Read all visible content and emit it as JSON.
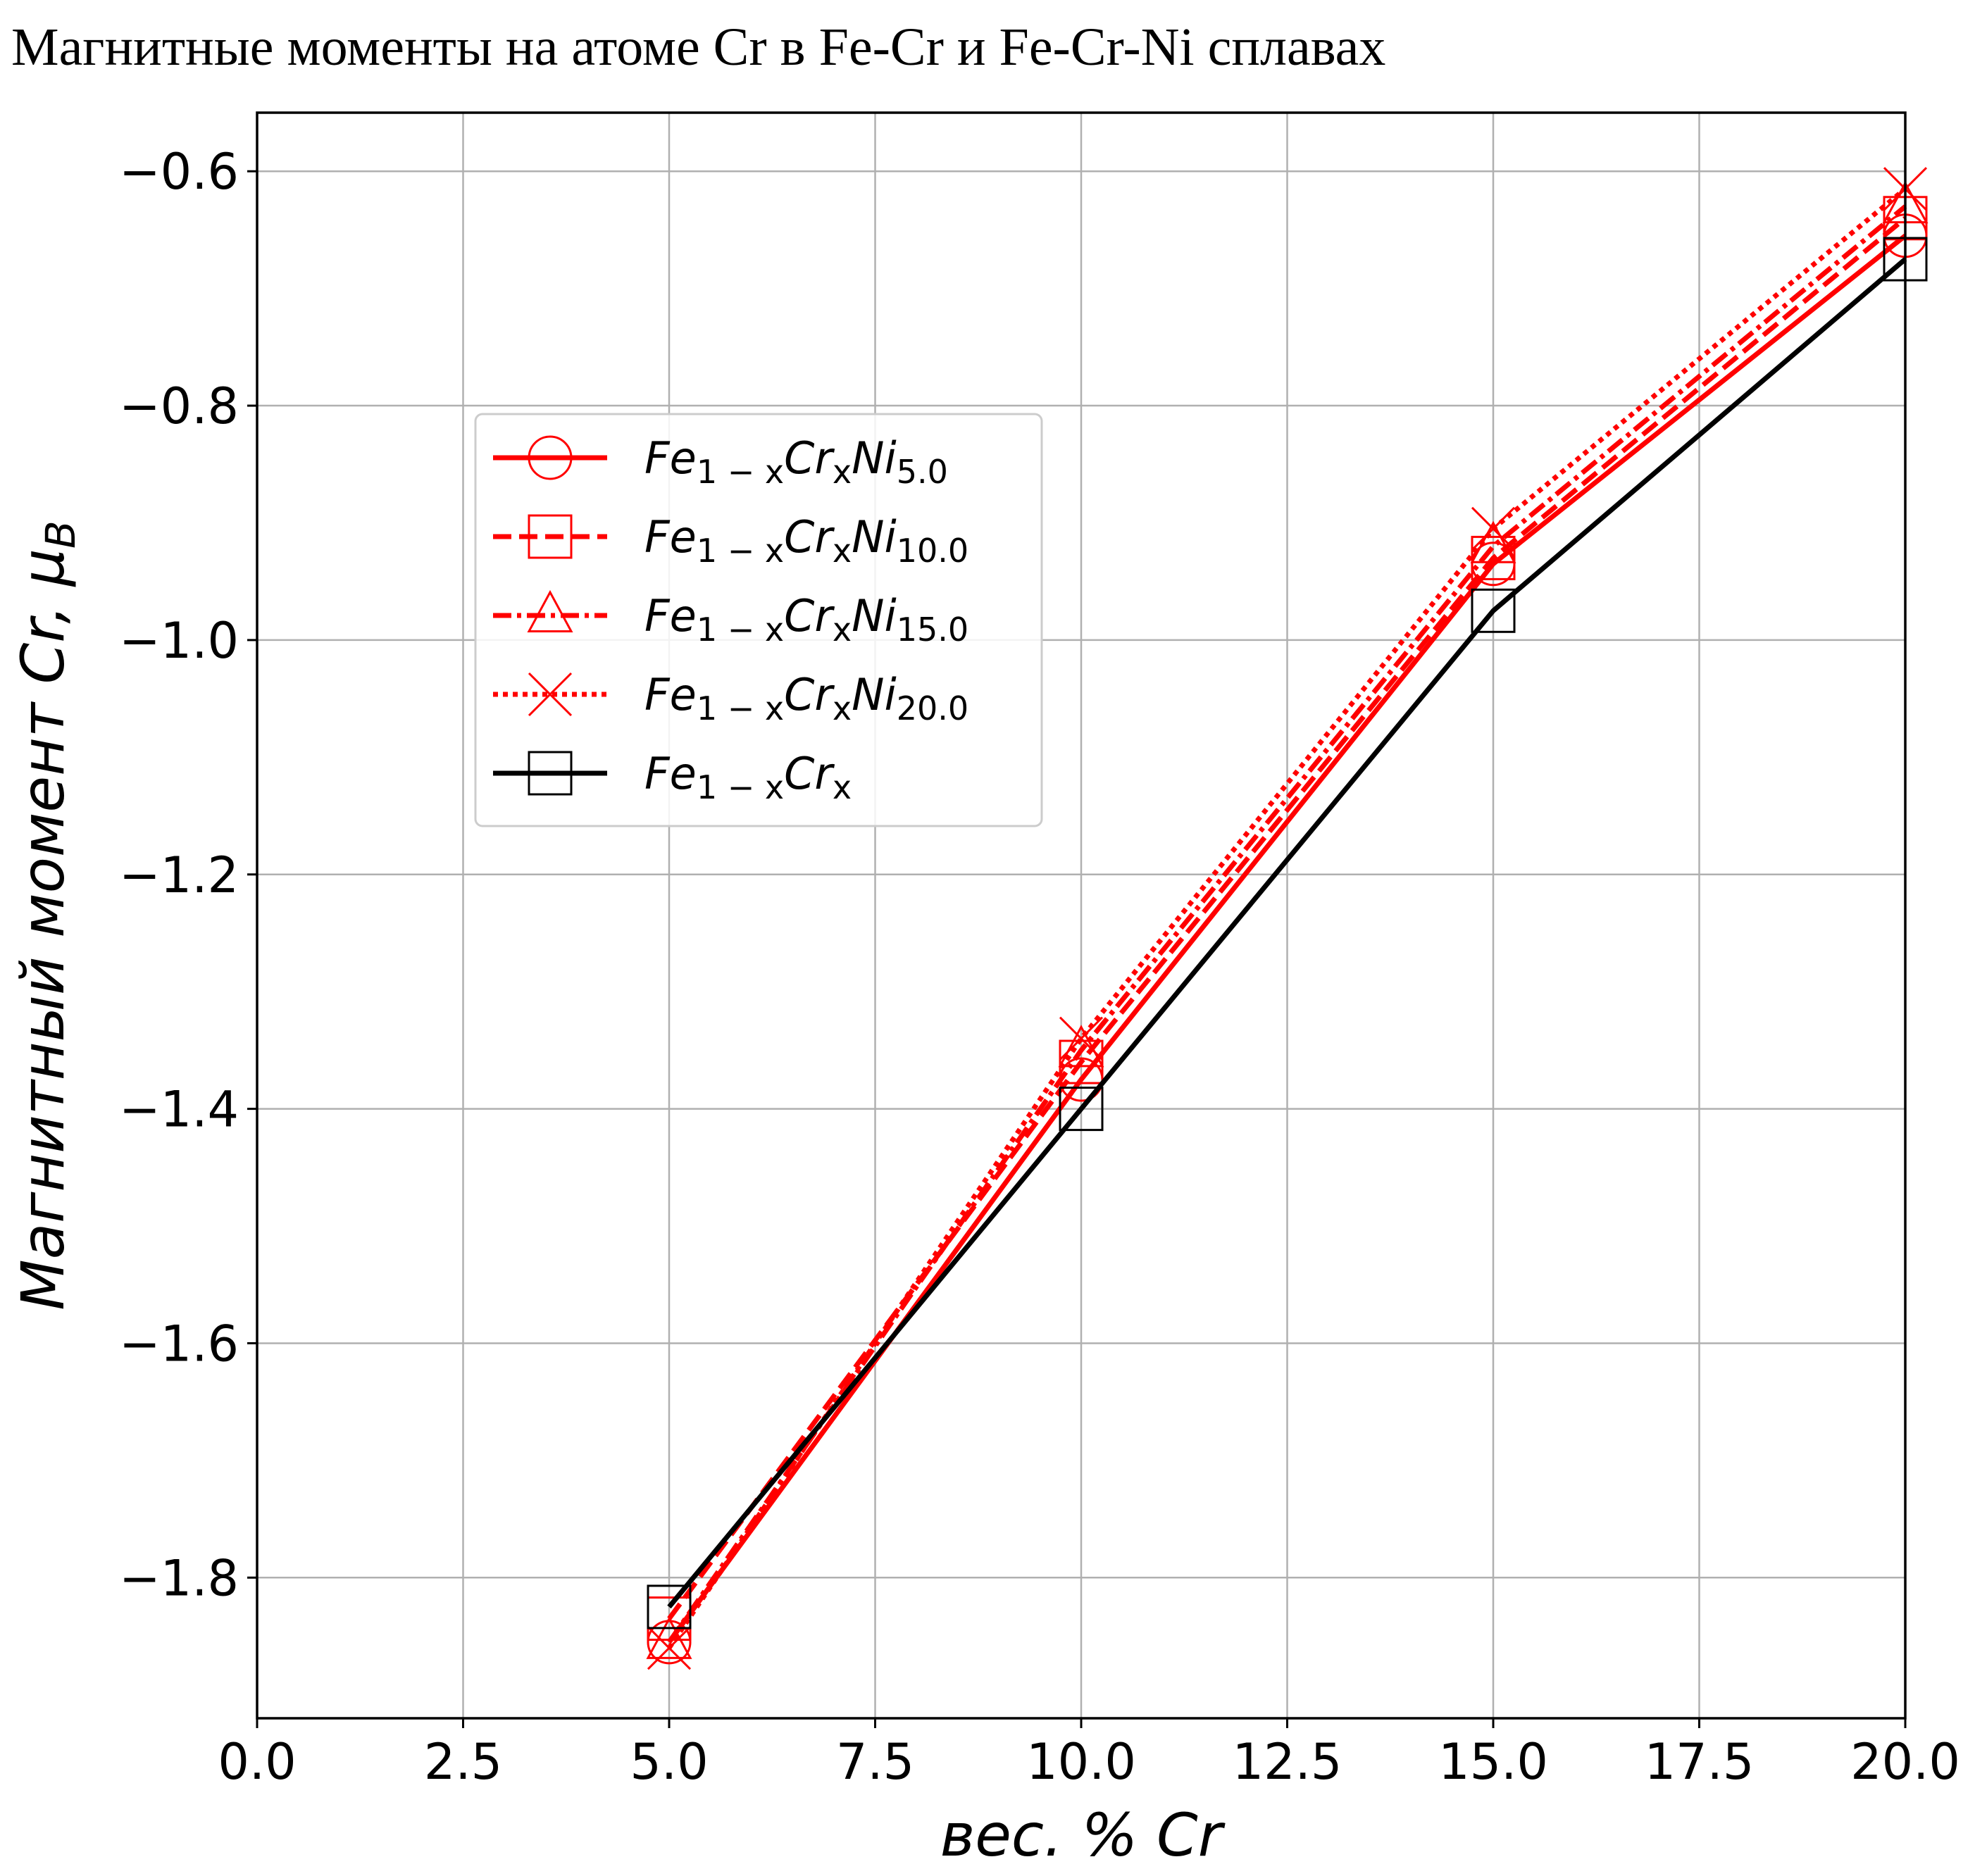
{
  "chart_data": {
    "type": "line",
    "title": "Магнитные моменты на атоме Cr в Fe-Cr и Fe-Cr-Ni сплавах",
    "xlabel": "вес. % Cr",
    "ylabel": {
      "main": "Магнитный момент Cr, μ",
      "sub": "B"
    },
    "xlim": [
      0.0,
      20.0
    ],
    "ylim": [
      -1.92,
      -0.55
    ],
    "xticks": [
      "0.0",
      "2.5",
      "5.0",
      "7.5",
      "10.0",
      "12.5",
      "15.0",
      "17.5",
      "20.0"
    ],
    "yticks": [
      "−0.6",
      "−0.8",
      "−1.0",
      "−1.2",
      "−1.4",
      "−1.6",
      "−1.8"
    ],
    "xtick_values": [
      0.0,
      2.5,
      5.0,
      7.5,
      10.0,
      12.5,
      15.0,
      17.5,
      20.0
    ],
    "ytick_values": [
      -0.6,
      -0.8,
      -1.0,
      -1.2,
      -1.4,
      -1.6,
      -1.8
    ],
    "grid": true,
    "legend_placement": "upper-left",
    "x": [
      5.0,
      10.0,
      15.0,
      20.0
    ],
    "series": [
      {
        "base": "Fe",
        "s1": "1 − x",
        "mid": "Cr",
        "s2": "x",
        "tail": "Ni",
        "s3": "5.0",
        "color": "#ff0000",
        "dash": "solid",
        "marker": "circle",
        "values": [
          -1.855,
          -1.375,
          -0.935,
          -0.655
        ]
      },
      {
        "base": "Fe",
        "s1": "1 − x",
        "mid": "Cr",
        "s2": "x",
        "tail": "Ni",
        "s3": "10.0",
        "color": "#ff0000",
        "dash": "dashed",
        "marker": "square",
        "values": [
          -1.835,
          -1.36,
          -0.93,
          -0.64
        ]
      },
      {
        "base": "Fe",
        "s1": "1 − x",
        "mid": "Cr",
        "s2": "x",
        "tail": "Ni",
        "s3": "15.0",
        "color": "#ff0000",
        "dash": "dashdot",
        "marker": "triangle",
        "values": [
          -1.855,
          -1.35,
          -0.92,
          -0.63
        ]
      },
      {
        "base": "Fe",
        "s1": "1 − x",
        "mid": "Cr",
        "s2": "x",
        "tail": "Ni",
        "s3": "20.0",
        "color": "#ff0000",
        "dash": "dotted",
        "marker": "x",
        "values": [
          -1.86,
          -1.34,
          -0.905,
          -0.615
        ]
      },
      {
        "base": "Fe",
        "s1": "1 − x",
        "mid": "Cr",
        "s2": "x",
        "tail": "",
        "s3": "",
        "color": "#000000",
        "dash": "solid",
        "marker": "square",
        "values": [
          -1.825,
          -1.4,
          -0.975,
          -0.675
        ]
      }
    ]
  }
}
